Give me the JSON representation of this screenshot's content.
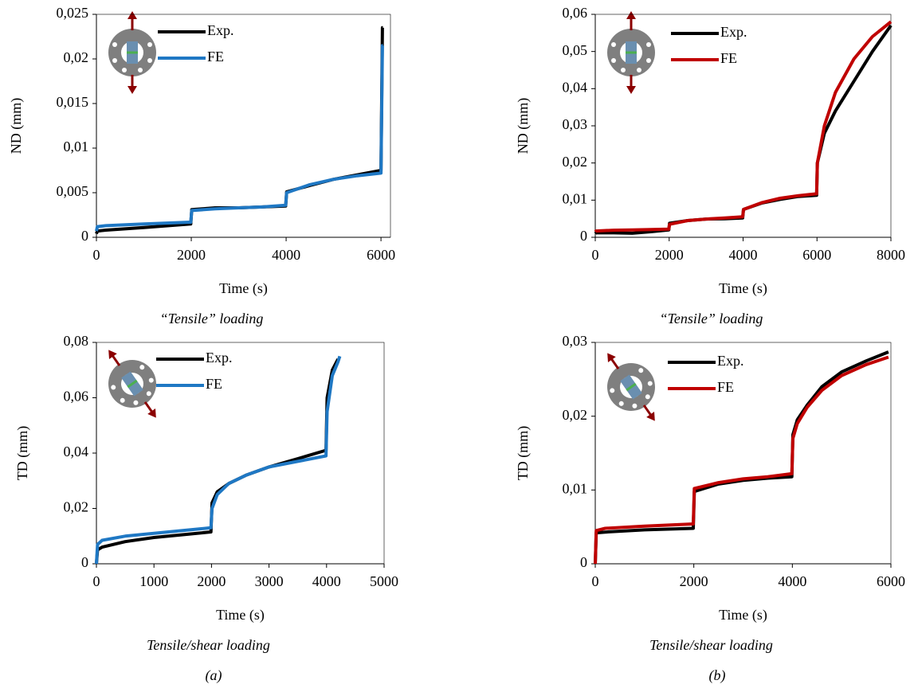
{
  "chart_data": [
    {
      "type": "line",
      "x_label": "Time (s)",
      "y_label": "ND (mm)",
      "caption": "“Tensile” loading",
      "legend": "upper left",
      "x": [
        0,
        20,
        200,
        1000,
        1990,
        2010,
        2500,
        3000,
        3500,
        3990,
        4010,
        4500,
        5000,
        5500,
        6000,
        6030,
        6040
      ],
      "series": [
        {
          "name": "Exp.",
          "color": "#000000",
          "values": [
            0.0004,
            0.0007,
            0.0008,
            0.0011,
            0.0015,
            0.0031,
            0.0033,
            0.0033,
            0.0034,
            0.0035,
            0.0051,
            0.0058,
            0.0065,
            0.007,
            0.0075,
            0.0235,
            0.0235
          ]
        },
        {
          "name": "FE",
          "color": "#1f78c4",
          "values": [
            0.0007,
            0.0012,
            0.0013,
            0.0015,
            0.0017,
            0.003,
            0.0032,
            0.0033,
            0.0034,
            0.0036,
            0.005,
            0.0059,
            0.0065,
            0.0069,
            0.0072,
            0.0215,
            0.0215
          ]
        }
      ],
      "xlim": [
        0,
        6200
      ],
      "xticks": [
        0,
        2000,
        4000,
        6000
      ],
      "ylim": [
        0,
        0.025
      ],
      "yticks": [
        0,
        {
          "value": 0.005,
          "label": "0,005"
        },
        {
          "value": 0.01,
          "label": "0,01"
        },
        {
          "value": 0.015,
          "label": "0,015"
        },
        {
          "value": 0.02,
          "label": "0,02"
        },
        {
          "value": 0.025,
          "label": "0,025"
        }
      ]
    },
    {
      "type": "line",
      "x_label": "Time (s)",
      "y_label": "ND (mm)",
      "caption": "“Tensile” loading",
      "legend": "upper left",
      "x": [
        0,
        20,
        500,
        1000,
        1500,
        1990,
        2010,
        2500,
        3000,
        3500,
        3990,
        4010,
        4500,
        5000,
        5500,
        5990,
        6010,
        6200,
        6500,
        7000,
        7500,
        8000
      ],
      "series": [
        {
          "name": "Exp.",
          "color": "#000000",
          "values": [
            0.001,
            0.0012,
            0.0012,
            0.0011,
            0.0015,
            0.002,
            0.0038,
            0.0045,
            0.0049,
            0.005,
            0.0052,
            0.0075,
            0.0092,
            0.0102,
            0.011,
            0.0113,
            0.02,
            0.028,
            0.034,
            0.042,
            0.05,
            0.057
          ]
        },
        {
          "name": "FE",
          "color": "#c00000",
          "values": [
            0.0015,
            0.0017,
            0.0019,
            0.002,
            0.0021,
            0.0022,
            0.0035,
            0.0045,
            0.0049,
            0.0052,
            0.0055,
            0.0075,
            0.0093,
            0.0105,
            0.0112,
            0.0117,
            0.02,
            0.03,
            0.039,
            0.048,
            0.054,
            0.058
          ]
        }
      ],
      "xlim": [
        0,
        8000
      ],
      "xticks": [
        0,
        2000,
        4000,
        6000,
        8000
      ],
      "ylim": [
        0,
        0.06
      ],
      "yticks": [
        0,
        {
          "value": 0.01,
          "label": "0,01"
        },
        {
          "value": 0.02,
          "label": "0,02"
        },
        {
          "value": 0.03,
          "label": "0,03"
        },
        {
          "value": 0.04,
          "label": "0,04"
        },
        {
          "value": 0.05,
          "label": "0,05"
        },
        {
          "value": 0.06,
          "label": "0,06"
        }
      ]
    },
    {
      "type": "line",
      "x_label": "Time (s)",
      "y_label": "TD (mm)",
      "caption": "Tensile/shear loading",
      "legend": "upper left",
      "x": [
        0,
        20,
        100,
        500,
        1000,
        1500,
        1990,
        2010,
        2100,
        2300,
        2600,
        3000,
        3500,
        3990,
        4010,
        4100,
        4200,
        4230
      ],
      "series": [
        {
          "name": "Exp.",
          "color": "#000000",
          "values": [
            0,
            0.005,
            0.006,
            0.008,
            0.0095,
            0.0105,
            0.0115,
            0.022,
            0.026,
            0.029,
            0.032,
            0.035,
            0.038,
            0.041,
            0.06,
            0.07,
            0.074,
            null
          ]
        },
        {
          "name": "FE",
          "color": "#1f78c4",
          "values": [
            0,
            0.007,
            0.0085,
            0.01,
            0.011,
            0.012,
            0.013,
            0.02,
            0.025,
            0.029,
            0.032,
            0.035,
            0.037,
            0.039,
            0.055,
            0.068,
            0.073,
            0.075
          ]
        }
      ],
      "xlim": [
        0,
        5000
      ],
      "xticks": [
        0,
        1000,
        2000,
        3000,
        4000,
        5000
      ],
      "ylim": [
        0,
        0.08
      ],
      "yticks": [
        0,
        {
          "value": 0.02,
          "label": "0,02"
        },
        {
          "value": 0.04,
          "label": "0,04"
        },
        {
          "value": 0.06,
          "label": "0,06"
        },
        {
          "value": 0.08,
          "label": "0,08"
        }
      ]
    },
    {
      "type": "line",
      "x_label": "Time (s)",
      "y_label": "TD (mm)",
      "caption": "Tensile/shear loading",
      "legend": "upper left",
      "x": [
        0,
        20,
        200,
        1000,
        1990,
        2010,
        2500,
        3000,
        3500,
        3990,
        4010,
        4100,
        4300,
        4600,
        5000,
        5500,
        5950
      ],
      "series": [
        {
          "name": "Exp.",
          "color": "#000000",
          "values": [
            0,
            0.0042,
            0.0043,
            0.0046,
            0.0048,
            0.0098,
            0.0108,
            0.0113,
            0.0116,
            0.0118,
            0.0175,
            0.0195,
            0.0215,
            0.024,
            0.026,
            0.0275,
            0.0287
          ]
        },
        {
          "name": "FE",
          "color": "#c00000",
          "values": [
            0,
            0.0045,
            0.0048,
            0.0051,
            0.0054,
            0.0102,
            0.011,
            0.0115,
            0.0118,
            0.0122,
            0.017,
            0.019,
            0.0212,
            0.0235,
            0.0255,
            0.027,
            0.028
          ]
        }
      ],
      "xlim": [
        0,
        6000
      ],
      "xticks": [
        0,
        2000,
        4000,
        6000
      ],
      "ylim": [
        0,
        0.03
      ],
      "yticks": [
        0,
        {
          "value": 0.01,
          "label": "0,01"
        },
        {
          "value": 0.02,
          "label": "0,02"
        },
        {
          "value": 0.03,
          "label": "0,03"
        }
      ]
    }
  ],
  "panel_labels": [
    "(a)",
    "(b)"
  ]
}
